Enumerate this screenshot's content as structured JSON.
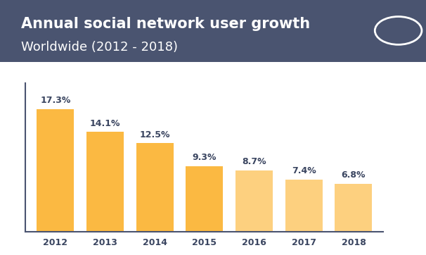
{
  "chart_data": {
    "type": "bar",
    "title": "Annual social network user growth",
    "subtitle": "Worldwide (2012 - 2018)",
    "categories": [
      "2012",
      "2013",
      "2014",
      "2015",
      "2016",
      "2017",
      "2018"
    ],
    "values": [
      17.3,
      14.1,
      12.5,
      9.3,
      8.7,
      7.4,
      6.8
    ],
    "value_labels": [
      "17.3%",
      "14.1%",
      "12.5%",
      "9.3%",
      "8.7%",
      "7.4%",
      "6.8%"
    ],
    "colors": [
      "#FBB942",
      "#FBB942",
      "#FBB942",
      "#FBB942",
      "#FDD07F",
      "#FDD07F",
      "#FDD07F"
    ],
    "ylim": [
      0,
      21
    ],
    "yticks": [],
    "grid": false,
    "data_labels": true,
    "tick_labels": "x"
  }
}
